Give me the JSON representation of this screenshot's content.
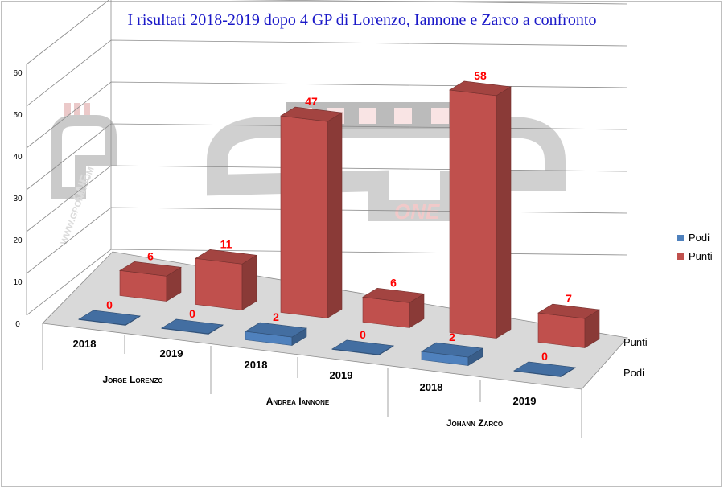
{
  "chart_data": {
    "type": "bar",
    "title": "I risultati 2018-2019 dopo 4 GP di Lorenzo, Iannone e Zarco a confronto",
    "projection": "3d",
    "categories": [
      "2018",
      "2019",
      "2018",
      "2019",
      "2018",
      "2019"
    ],
    "groups": [
      "Jorge Lorenzo",
      "Andrea Iannone",
      "Johann Zarco"
    ],
    "series": [
      {
        "name": "Podi",
        "values": [
          0,
          0,
          2,
          0,
          2,
          0
        ],
        "color": "#4f81bd"
      },
      {
        "name": "Punti",
        "values": [
          6,
          11,
          47,
          6,
          58,
          7
        ],
        "color": "#c0504d"
      }
    ],
    "depth_labels": [
      "Punti",
      "Podi"
    ],
    "y_ticks": [
      "0",
      "10",
      "20",
      "30",
      "40",
      "50",
      "60"
    ],
    "ylim": [
      0,
      60
    ],
    "legend_position": "right",
    "label_color": "#ff0000",
    "watermark": [
      "GP",
      "ONE",
      "WWW.GPONE.COM"
    ]
  }
}
